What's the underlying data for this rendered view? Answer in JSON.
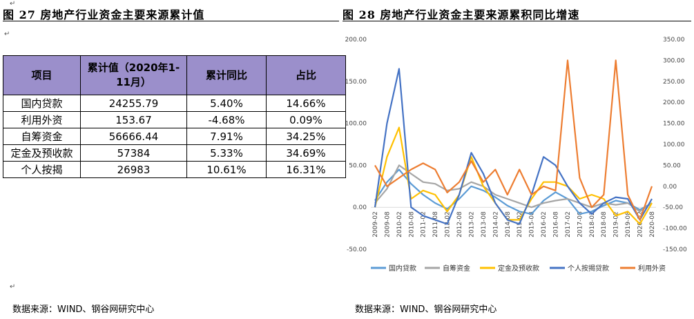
{
  "left": {
    "title": "图 27 房地产行业资金主要来源累计值",
    "table": {
      "headers": [
        "项目",
        "累计值（2020年1-11月）",
        "累计同比",
        "占比"
      ],
      "rows": [
        [
          "国内贷款",
          "24255.79",
          "5.40%",
          "14.66%"
        ],
        [
          "利用外资",
          "153.67",
          "-4.68%",
          "0.09%"
        ],
        [
          "自筹资金",
          "56666.44",
          "7.91%",
          "34.25%"
        ],
        [
          "定金及预收款",
          "57384",
          "5.33%",
          "34.69%"
        ],
        [
          "个人按揭",
          "26983",
          "10.61%",
          "16.31%"
        ]
      ]
    },
    "source": "数据来源：WIND、钢谷网研究中心"
  },
  "right": {
    "title": "图 28  房地产行业资金主要来源累积同比增速",
    "source": "数据来源：WIND、钢谷网研究中心"
  },
  "chart_data": {
    "type": "line",
    "title": "",
    "x": [
      "2009-02",
      "2009-08",
      "2010-02",
      "2010-08",
      "2011-02",
      "2011-08",
      "2012-02",
      "2012-08",
      "2013-02",
      "2013-08",
      "2014-02",
      "2014-08",
      "2015-02",
      "2015-08",
      "2016-02",
      "2016-08",
      "2017-02",
      "2017-08",
      "2018-02",
      "2018-08",
      "2019-02",
      "2019-08",
      "2020-02",
      "2020-08"
    ],
    "y_left": {
      "ticks": [
        "-50.00",
        "0.00",
        "50.00",
        "100.00",
        "150.00",
        "200.00"
      ],
      "ylim": [
        -50,
        200
      ]
    },
    "y_right": {
      "ticks": [
        "-150.00",
        "-100.00",
        "-50.00",
        "0.00",
        "50.00",
        "100.00",
        "150.00",
        "200.00",
        "250.00",
        "300.00",
        "350.00"
      ],
      "ylim": [
        -150,
        350
      ]
    },
    "legend_position": "bottom",
    "series": [
      {
        "name": "国内贷款",
        "color": "#5B9BD5",
        "axis": "left",
        "values": [
          8,
          30,
          45,
          28,
          15,
          5,
          -2,
          10,
          25,
          20,
          12,
          2,
          -5,
          -8,
          8,
          18,
          10,
          -8,
          -5,
          2,
          8,
          5,
          -3,
          5
        ]
      },
      {
        "name": "自筹资金",
        "color": "#A5A5A5",
        "axis": "left",
        "values": [
          5,
          22,
          50,
          40,
          30,
          28,
          20,
          22,
          30,
          25,
          15,
          10,
          5,
          0,
          5,
          8,
          10,
          5,
          0,
          5,
          3,
          5,
          -5,
          5
        ]
      },
      {
        "name": "定金及预收款",
        "color": "#FFC000",
        "axis": "left",
        "values": [
          0,
          60,
          95,
          10,
          20,
          15,
          -5,
          15,
          60,
          25,
          5,
          -15,
          -15,
          10,
          30,
          30,
          25,
          10,
          15,
          10,
          -10,
          -5,
          -20,
          5
        ]
      },
      {
        "name": "个人按揭贷款",
        "color": "#4472C4",
        "axis": "left",
        "values": [
          0,
          100,
          165,
          0,
          -10,
          -15,
          -20,
          15,
          65,
          40,
          5,
          -15,
          -20,
          15,
          60,
          50,
          25,
          5,
          -8,
          5,
          12,
          10,
          -15,
          10
        ]
      },
      {
        "name": "利用外资",
        "color": "#ED7D31",
        "axis": "right",
        "values": [
          50,
          0,
          20,
          40,
          55,
          40,
          -15,
          10,
          60,
          10,
          40,
          -20,
          40,
          -20,
          0,
          -10,
          300,
          20,
          -50,
          -20,
          300,
          -20,
          -80,
          0
        ]
      }
    ]
  }
}
